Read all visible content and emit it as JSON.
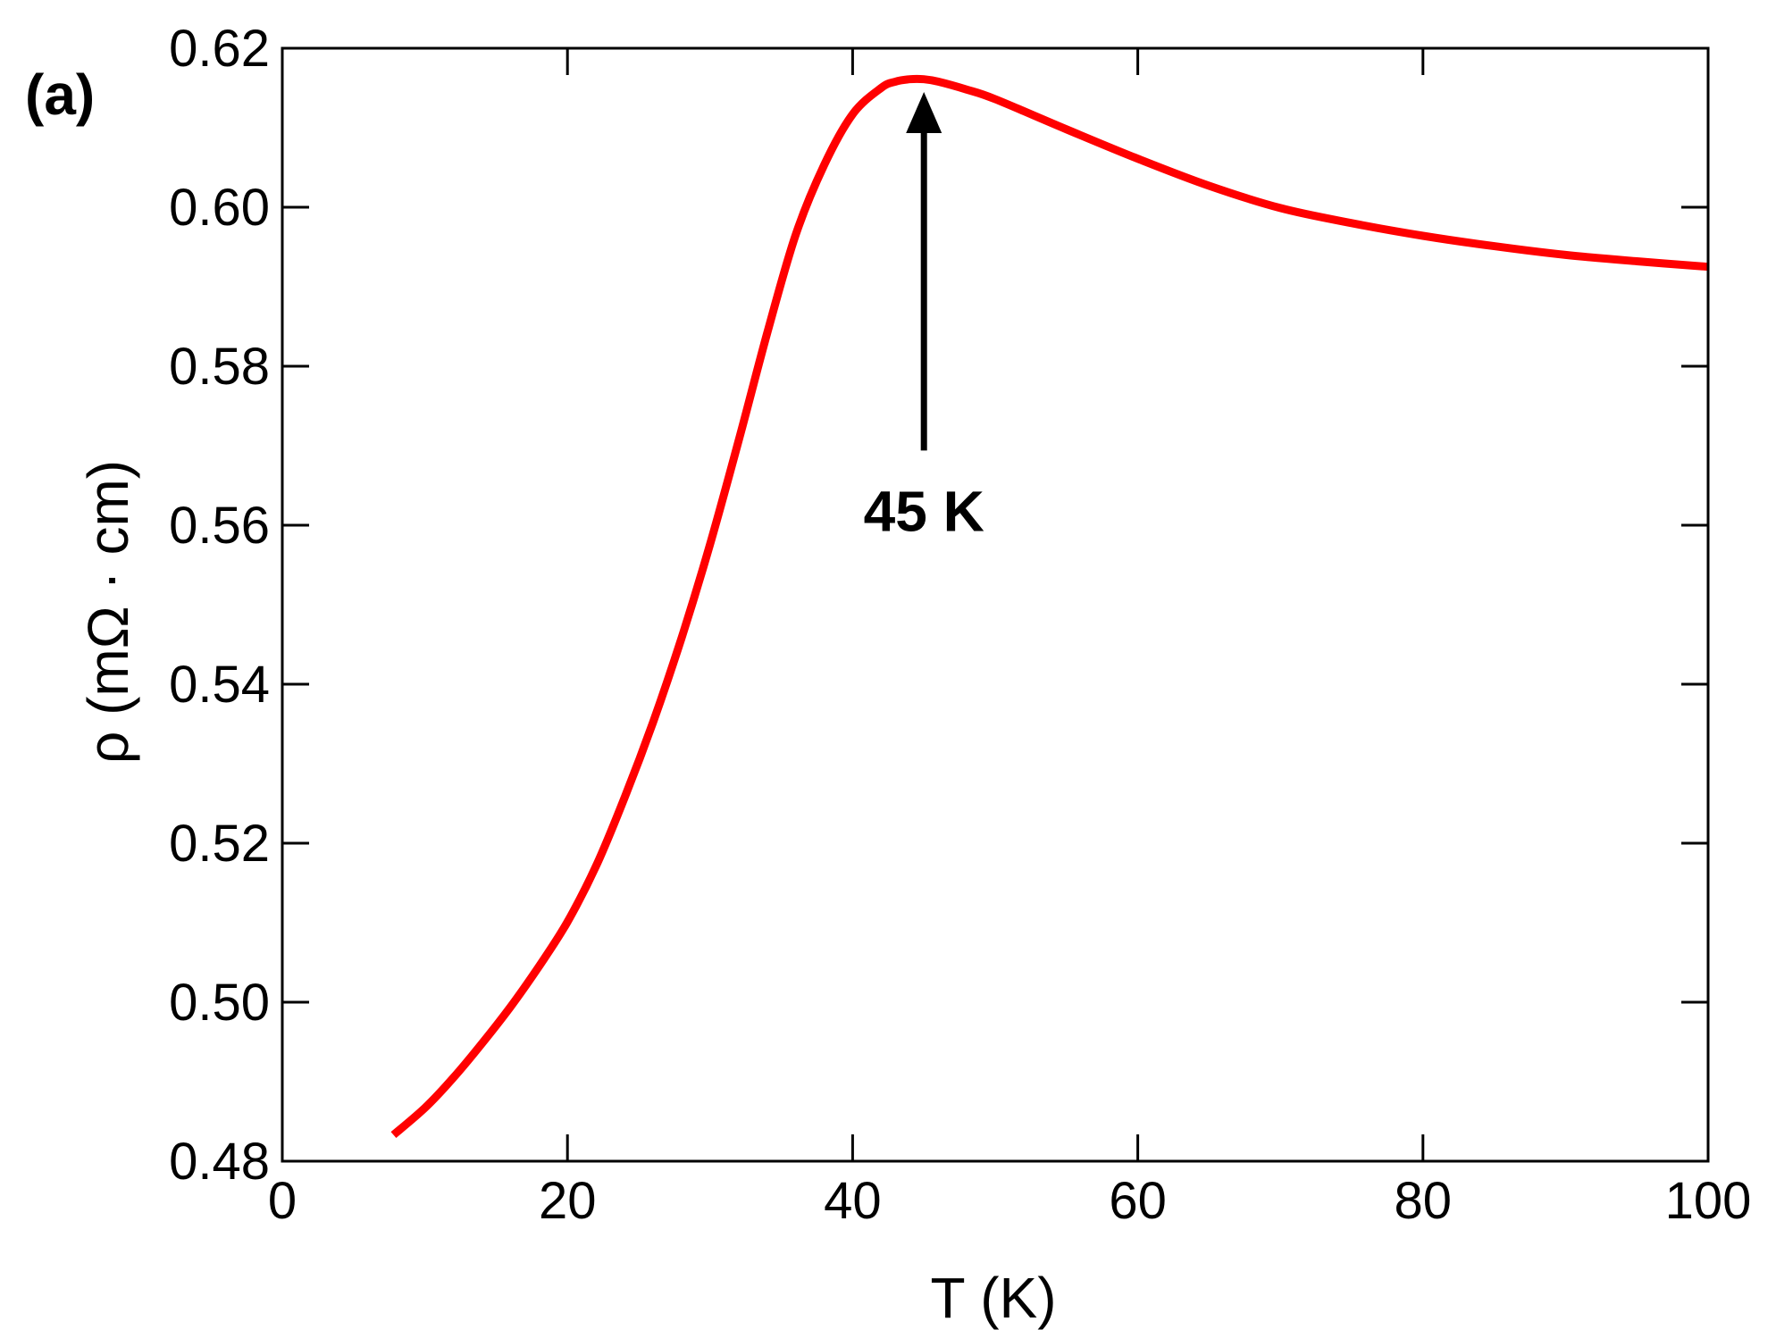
{
  "chart_data": {
    "type": "line",
    "panel_label": "(a)",
    "xlabel": "T (K)",
    "ylabel": "ρ (mΩ · cm)",
    "xlim": [
      0,
      100
    ],
    "ylim": [
      0.48,
      0.62
    ],
    "xticks": [
      0,
      20,
      40,
      60,
      80,
      100
    ],
    "xtick_labels": [
      "0",
      "20",
      "40",
      "60",
      "80",
      "100"
    ],
    "yticks": [
      0.48,
      0.5,
      0.52,
      0.54,
      0.56,
      0.58,
      0.6,
      0.62
    ],
    "ytick_labels": [
      "0.48",
      "0.50",
      "0.52",
      "0.54",
      "0.56",
      "0.58",
      "0.60",
      "0.62"
    ],
    "grid": false,
    "series": [
      {
        "color": "#ff0000",
        "x": [
          7.8,
          10,
          12,
          14,
          16,
          18,
          20,
          22,
          24,
          26,
          28,
          30,
          32,
          34,
          36,
          38,
          40,
          42,
          43,
          44,
          45,
          46,
          48,
          50,
          55,
          60,
          65,
          70,
          75,
          80,
          85,
          90,
          95,
          100
        ],
        "y": [
          0.4833,
          0.4867,
          0.4905,
          0.4948,
          0.4994,
          0.5045,
          0.5101,
          0.5171,
          0.5257,
          0.5352,
          0.5458,
          0.5576,
          0.5706,
          0.5841,
          0.5965,
          0.6053,
          0.6117,
          0.615,
          0.6158,
          0.6161,
          0.6161,
          0.6158,
          0.6148,
          0.6136,
          0.6098,
          0.6061,
          0.6027,
          0.5999,
          0.598,
          0.5964,
          0.5951,
          0.594,
          0.5932,
          0.5925
        ]
      }
    ],
    "annotation": {
      "text": "45 K",
      "x": 45,
      "arrow_tip_y": 0.6145,
      "arrow_tail_y": 0.5694
    }
  }
}
